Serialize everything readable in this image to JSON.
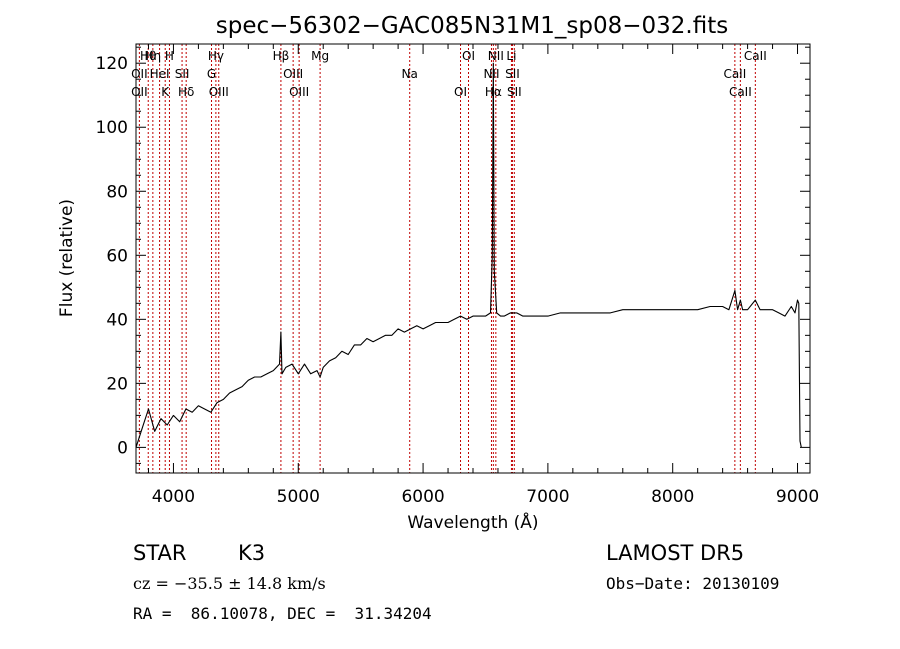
{
  "chart_data": {
    "type": "line",
    "title": "spec−56302−GAC085N31M1_sp08−032.fits",
    "xlabel": "Wavelength (Å)",
    "ylabel": "Flux (relative)",
    "xlim": [
      3700,
      9100
    ],
    "ylim": [
      -8,
      126
    ],
    "x_ticks": [
      4000,
      5000,
      6000,
      7000,
      8000,
      9000
    ],
    "y_ticks": [
      0,
      20,
      40,
      60,
      80,
      100,
      120
    ],
    "grid": false,
    "legend": "none",
    "series": [
      {
        "x": [
          3700,
          3750,
          3800,
          3850,
          3900,
          3950,
          4000,
          4050,
          4100,
          4150,
          4200,
          4250,
          4300,
          4350,
          4400,
          4450,
          4500,
          4550,
          4600,
          4650,
          4700,
          4750,
          4800,
          4850,
          4861,
          4870,
          4900,
          4950,
          5000,
          5050,
          5100,
          5150,
          5175,
          5200,
          5250,
          5300,
          5350,
          5400,
          5450,
          5500,
          5550,
          5600,
          5650,
          5700,
          5750,
          5800,
          5850,
          5900,
          5950,
          6000,
          6050,
          6100,
          6150,
          6200,
          6250,
          6300,
          6350,
          6400,
          6450,
          6500,
          6540,
          6555,
          6563,
          6571,
          6590,
          6620,
          6650,
          6700,
          6750,
          6800,
          6900,
          7000,
          7100,
          7200,
          7300,
          7400,
          7500,
          7600,
          7700,
          7800,
          7900,
          8000,
          8100,
          8200,
          8300,
          8400,
          8450,
          8498,
          8520,
          8542,
          8560,
          8600,
          8662,
          8700,
          8750,
          8800,
          8850,
          8900,
          8950,
          8980,
          9000,
          9010,
          9020,
          9030
        ],
        "values": [
          0,
          6,
          12,
          5,
          9,
          7,
          10,
          8,
          12,
          11,
          13,
          12,
          11,
          14,
          15,
          17,
          18,
          19,
          21,
          22,
          22,
          23,
          24,
          26,
          36,
          23,
          25,
          26,
          23,
          26,
          23,
          24,
          22,
          25,
          27,
          28,
          30,
          29,
          32,
          32,
          34,
          33,
          34,
          35,
          35,
          37,
          36,
          37,
          38,
          37,
          38,
          39,
          39,
          39,
          40,
          41,
          40,
          41,
          41,
          41,
          42,
          60,
          120,
          55,
          42,
          41,
          41,
          42,
          42,
          41,
          41,
          41,
          42,
          42,
          42,
          42,
          42,
          43,
          43,
          43,
          43,
          43,
          43,
          43,
          44,
          44,
          43,
          49,
          43,
          46,
          43,
          43,
          46,
          43,
          43,
          43,
          42,
          41,
          44,
          42,
          46,
          45,
          2,
          0
        ]
      }
    ],
    "line_groups": [
      {
        "lines": [
          {
            "label": "Hθ",
            "x": 3798
          },
          {
            "label": "OII",
            "x": 3727
          },
          {
            "label": "OII",
            "x": 3727
          },
          {
            "label": "Hη",
            "x": 3835
          },
          {
            "label": "HeI",
            "x": 3889
          },
          {
            "label": "K",
            "x": 3934
          },
          {
            "label": "H",
            "x": 3968
          },
          {
            "label": "SII",
            "x": 4069
          },
          {
            "label": "Hδ",
            "x": 4102
          },
          {
            "label": "Hγ",
            "x": 4340
          },
          {
            "label": "G",
            "x": 4305
          },
          {
            "label": "OIII",
            "x": 4363
          },
          {
            "label": "Hβ",
            "x": 4861
          },
          {
            "label": "OIII",
            "x": 4959
          },
          {
            "label": "OIII",
            "x": 5007
          },
          {
            "label": "Mg",
            "x": 5175
          },
          {
            "label": "Na",
            "x": 5893
          },
          {
            "label": "OI",
            "x": 6300
          },
          {
            "label": "OI",
            "x": 6364
          },
          {
            "label": "NII",
            "x": 6548
          },
          {
            "label": "Hα",
            "x": 6563
          },
          {
            "label": "NII",
            "x": 6583
          },
          {
            "label": "SII",
            "x": 6716
          },
          {
            "label": "SII",
            "x": 6731
          },
          {
            "label": "Li",
            "x": 6708
          },
          {
            "label": "CaII",
            "x": 8498
          },
          {
            "label": "CaII",
            "x": 8542
          },
          {
            "label": "CaII",
            "x": 8662
          }
        ]
      }
    ]
  },
  "info": {
    "object_class": "STAR",
    "subclass": "K3",
    "survey": "LAMOST DR5",
    "redshift_line": "cz = −35.5 ± 14.8 km/s",
    "obs_date": "Obs−Date: 20130109",
    "coords": "RA =  86.10078, DEC =  31.34204"
  },
  "colors": {
    "spectrum": "#000000",
    "line_markers": "#c00000",
    "axes": "#000000"
  }
}
